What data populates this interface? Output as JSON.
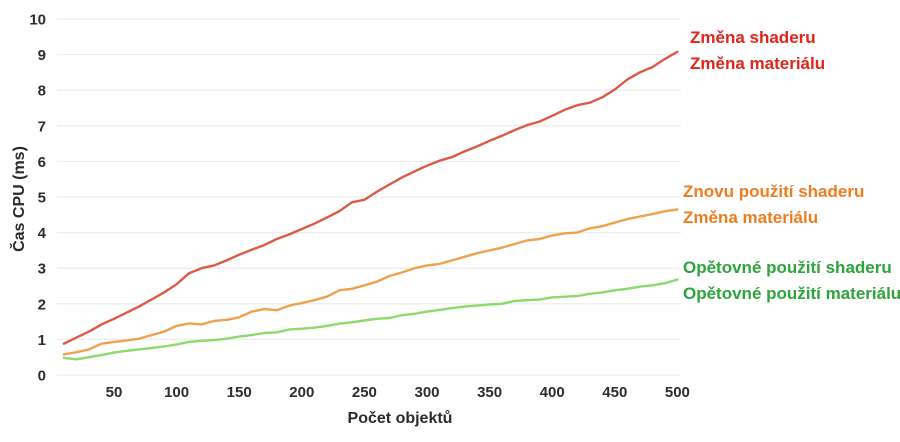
{
  "chart_data": {
    "type": "line",
    "title": "",
    "xlabel": "Počet objektů",
    "ylabel": "Čas CPU (ms)",
    "xlim": [
      0,
      520
    ],
    "ylim": [
      0,
      10
    ],
    "x_ticks": [
      50,
      100,
      150,
      200,
      250,
      300,
      350,
      400,
      450,
      500
    ],
    "y_ticks": [
      0,
      1,
      2,
      3,
      4,
      5,
      6,
      7,
      8,
      9,
      10
    ],
    "grid": "horizontal-only",
    "legend_position": "right-of-lines",
    "x": [
      10,
      20,
      30,
      40,
      50,
      60,
      70,
      80,
      90,
      100,
      110,
      120,
      130,
      140,
      150,
      160,
      170,
      180,
      190,
      200,
      210,
      220,
      230,
      240,
      250,
      260,
      270,
      280,
      290,
      300,
      310,
      320,
      330,
      340,
      350,
      360,
      370,
      380,
      390,
      400,
      410,
      420,
      430,
      440,
      450,
      460,
      470,
      480,
      490,
      500
    ],
    "series": [
      {
        "name": "Změna shaderu / Změna materiálu",
        "label_lines": [
          "Změna shaderu",
          "Změna materiálu"
        ],
        "color": "#dd5a49",
        "label_color": "#e1251b",
        "values": [
          0.88,
          1.05,
          1.22,
          1.42,
          1.58,
          1.75,
          1.92,
          2.12,
          2.32,
          2.55,
          2.86,
          3.0,
          3.08,
          3.22,
          3.38,
          3.52,
          3.65,
          3.82,
          3.95,
          4.1,
          4.25,
          4.42,
          4.6,
          4.85,
          4.92,
          5.15,
          5.35,
          5.55,
          5.72,
          5.88,
          6.02,
          6.12,
          6.28,
          6.42,
          6.58,
          6.72,
          6.88,
          7.02,
          7.12,
          7.28,
          7.45,
          7.58,
          7.65,
          7.8,
          8.02,
          8.3,
          8.5,
          8.65,
          8.88,
          9.08
        ]
      },
      {
        "name": "Znovu použití shaderu / Změna materiálu",
        "label_lines": [
          "Znovu použití shaderu",
          "Změna materiálu"
        ],
        "color": "#efa14e",
        "label_color": "#ee7d22",
        "values": [
          0.58,
          0.64,
          0.72,
          0.88,
          0.93,
          0.97,
          1.02,
          1.12,
          1.22,
          1.38,
          1.45,
          1.42,
          1.52,
          1.55,
          1.62,
          1.78,
          1.85,
          1.82,
          1.95,
          2.02,
          2.1,
          2.2,
          2.38,
          2.42,
          2.52,
          2.62,
          2.78,
          2.88,
          3.0,
          3.08,
          3.12,
          3.22,
          3.32,
          3.42,
          3.5,
          3.58,
          3.68,
          3.78,
          3.82,
          3.92,
          3.98,
          4.0,
          4.12,
          4.18,
          4.28,
          4.38,
          4.45,
          4.52,
          4.6,
          4.65
        ]
      },
      {
        "name": "Opětovné použití shaderu / Opětovné použití materiálu",
        "label_lines": [
          "Opětovné použití shaderu",
          "Opětovné použití materiálu"
        ],
        "color": "#8ed96d",
        "label_color": "#2ea43c",
        "values": [
          0.48,
          0.44,
          0.5,
          0.56,
          0.63,
          0.68,
          0.72,
          0.76,
          0.8,
          0.86,
          0.93,
          0.96,
          0.98,
          1.02,
          1.08,
          1.12,
          1.18,
          1.2,
          1.28,
          1.3,
          1.33,
          1.38,
          1.44,
          1.48,
          1.53,
          1.58,
          1.6,
          1.68,
          1.72,
          1.78,
          1.83,
          1.88,
          1.92,
          1.95,
          1.98,
          2.0,
          2.08,
          2.1,
          2.12,
          2.18,
          2.2,
          2.22,
          2.28,
          2.32,
          2.38,
          2.42,
          2.48,
          2.52,
          2.58,
          2.68
        ]
      }
    ],
    "colors": {
      "grid": "#ededed",
      "axis_text": "#2d2d2d",
      "background": "#ffffff"
    }
  }
}
